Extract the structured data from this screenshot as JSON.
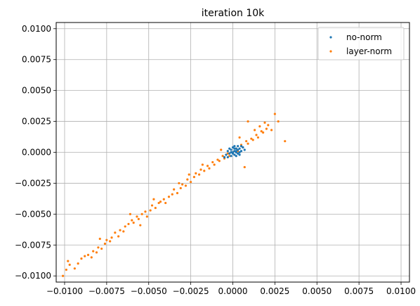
{
  "chart_data": {
    "type": "scatter",
    "title": "iteration 10k",
    "xlabel": "",
    "ylabel": "",
    "xlim": [
      -0.0105,
      0.0105
    ],
    "ylim": [
      -0.0105,
      0.0105
    ],
    "xticks": [
      -0.01,
      -0.0075,
      -0.005,
      -0.0025,
      0,
      0.0025,
      0.005,
      0.0075,
      0.01
    ],
    "xtick_labels": [
      "−0.0100",
      "−0.0075",
      "−0.0050",
      "−0.0025",
      "0.0000",
      "0.0025",
      "0.0050",
      "0.0075",
      "0.0100"
    ],
    "yticks": [
      -0.01,
      -0.0075,
      -0.005,
      -0.0025,
      0,
      0.0025,
      0.005,
      0.0075,
      0.01
    ],
    "ytick_labels": [
      "−0.0100",
      "−0.0075",
      "−0.0050",
      "−0.0025",
      "0.0000",
      "0.0025",
      "0.0050",
      "0.0075",
      "0.0100"
    ],
    "grid": true,
    "legend_position": "top-right",
    "series": [
      {
        "name": "no-norm",
        "color": "#1f77b4",
        "points": [
          [
            0.0001,
            0.0001
          ],
          [
            0.0002,
            0.0
          ],
          [
            -0.0001,
            0.0002
          ],
          [
            0.0,
            -0.0001
          ],
          [
            0.0003,
            0.0002
          ],
          [
            -0.0002,
            -0.0001
          ],
          [
            0.0004,
            0.0003
          ],
          [
            0.0001,
            -0.0002
          ],
          [
            -0.0003,
            0.0001
          ],
          [
            0.0002,
            0.0003
          ],
          [
            0.0005,
            0.0001
          ],
          [
            -0.0001,
            -0.0003
          ],
          [
            0.0003,
            -0.0001
          ],
          [
            0.0,
            0.0004
          ],
          [
            -0.0004,
            -0.0002
          ],
          [
            0.0006,
            0.0004
          ],
          [
            0.0002,
            -0.0003
          ],
          [
            -0.0002,
            0.0003
          ],
          [
            0.0004,
            0.0
          ],
          [
            0.0001,
            0.0005
          ],
          [
            -0.0005,
            -0.0004
          ],
          [
            0.0003,
            0.0005
          ],
          [
            0.0007,
            0.0002
          ],
          [
            -0.0003,
            -0.0004
          ],
          [
            0.0,
            0.0
          ],
          [
            0.0002,
            0.0001
          ],
          [
            -0.0001,
            0.0
          ],
          [
            0.0004,
            -0.0002
          ],
          [
            0.0001,
            0.0003
          ],
          [
            0.0005,
            0.0005
          ]
        ]
      },
      {
        "name": "layer-norm",
        "color": "#ff7f0e",
        "points": [
          [
            -0.0101,
            -0.01
          ],
          [
            -0.0099,
            -0.0095
          ],
          [
            -0.0097,
            -0.0091
          ],
          [
            -0.0094,
            -0.0094
          ],
          [
            -0.0092,
            -0.009
          ],
          [
            -0.009,
            -0.0086
          ],
          [
            -0.0088,
            -0.0084
          ],
          [
            -0.0086,
            -0.0083
          ],
          [
            -0.0084,
            -0.0085
          ],
          [
            -0.0083,
            -0.008
          ],
          [
            -0.0081,
            -0.0081
          ],
          [
            -0.008,
            -0.0077
          ],
          [
            -0.0078,
            -0.0078
          ],
          [
            -0.0076,
            -0.0074
          ],
          [
            -0.0075,
            -0.0071
          ],
          [
            -0.0073,
            -0.0072
          ],
          [
            -0.0072,
            -0.0069
          ],
          [
            -0.007,
            -0.0065
          ],
          [
            -0.0068,
            -0.0068
          ],
          [
            -0.0067,
            -0.0063
          ],
          [
            -0.0065,
            -0.0064
          ],
          [
            -0.0064,
            -0.006
          ],
          [
            -0.0062,
            -0.0058
          ],
          [
            -0.006,
            -0.0055
          ],
          [
            -0.0059,
            -0.0057
          ],
          [
            -0.0057,
            -0.0052
          ],
          [
            -0.0056,
            -0.0054
          ],
          [
            -0.0054,
            -0.005
          ],
          [
            -0.0052,
            -0.0048
          ],
          [
            -0.0051,
            -0.0052
          ],
          [
            -0.0049,
            -0.0047
          ],
          [
            -0.0048,
            -0.0043
          ],
          [
            -0.0046,
            -0.0045
          ],
          [
            -0.0044,
            -0.0041
          ],
          [
            -0.0043,
            -0.004
          ],
          [
            -0.0041,
            -0.0038
          ],
          [
            -0.004,
            -0.0041
          ],
          [
            -0.0038,
            -0.0036
          ],
          [
            -0.0036,
            -0.0034
          ],
          [
            -0.0035,
            -0.003
          ],
          [
            -0.0033,
            -0.0033
          ],
          [
            -0.0031,
            -0.0029
          ],
          [
            -0.003,
            -0.0026
          ],
          [
            -0.0028,
            -0.0027
          ],
          [
            -0.0027,
            -0.0022
          ],
          [
            -0.0025,
            -0.0024
          ],
          [
            -0.0023,
            -0.002
          ],
          [
            -0.0022,
            -0.0017
          ],
          [
            -0.002,
            -0.0018
          ],
          [
            -0.0019,
            -0.0014
          ],
          [
            -0.0017,
            -0.0015
          ],
          [
            -0.0015,
            -0.0011
          ],
          [
            -0.0014,
            -0.0013
          ],
          [
            -0.0012,
            -0.0008
          ],
          [
            -0.0011,
            -0.001
          ],
          [
            -0.0009,
            -0.0006
          ],
          [
            -0.0008,
            -0.0007
          ],
          [
            -0.0006,
            -0.0003
          ],
          [
            -0.0005,
            -0.0005
          ],
          [
            -0.0003,
            -0.0001
          ],
          [
            -0.0002,
            -0.0003
          ],
          [
            0.0,
            0.0
          ],
          [
            0.0002,
            0.0003
          ],
          [
            0.0003,
            0.0001
          ],
          [
            0.0005,
            0.0006
          ],
          [
            0.0006,
            0.0004
          ],
          [
            0.0008,
            0.0009
          ],
          [
            0.0009,
            0.0007
          ],
          [
            0.0011,
            0.0011
          ],
          [
            0.0012,
            0.001
          ],
          [
            0.0014,
            0.0014
          ],
          [
            0.0015,
            0.0012
          ],
          [
            0.0017,
            0.0017
          ],
          [
            0.0018,
            0.0016
          ],
          [
            0.002,
            0.0019
          ],
          [
            0.0021,
            0.0022
          ],
          [
            0.0023,
            0.0018
          ],
          [
            0.0025,
            0.0031
          ],
          [
            0.0027,
            0.0025
          ],
          [
            0.0031,
            0.0009
          ],
          [
            -0.0098,
            -0.0088
          ],
          [
            -0.0079,
            -0.007
          ],
          [
            -0.0061,
            -0.005
          ],
          [
            -0.0047,
            -0.0038
          ],
          [
            -0.0032,
            -0.0025
          ],
          [
            -0.0018,
            -0.001
          ],
          [
            -0.0007,
            0.0002
          ],
          [
            0.0004,
            0.0012
          ],
          [
            0.0013,
            0.0018
          ],
          [
            0.0019,
            0.0024
          ],
          [
            0.0009,
            0.0025
          ],
          [
            0.0016,
            0.0021
          ],
          [
            0.0007,
            -0.0012
          ],
          [
            -0.0026,
            -0.0018
          ],
          [
            -0.0055,
            -0.0059
          ]
        ]
      }
    ]
  }
}
